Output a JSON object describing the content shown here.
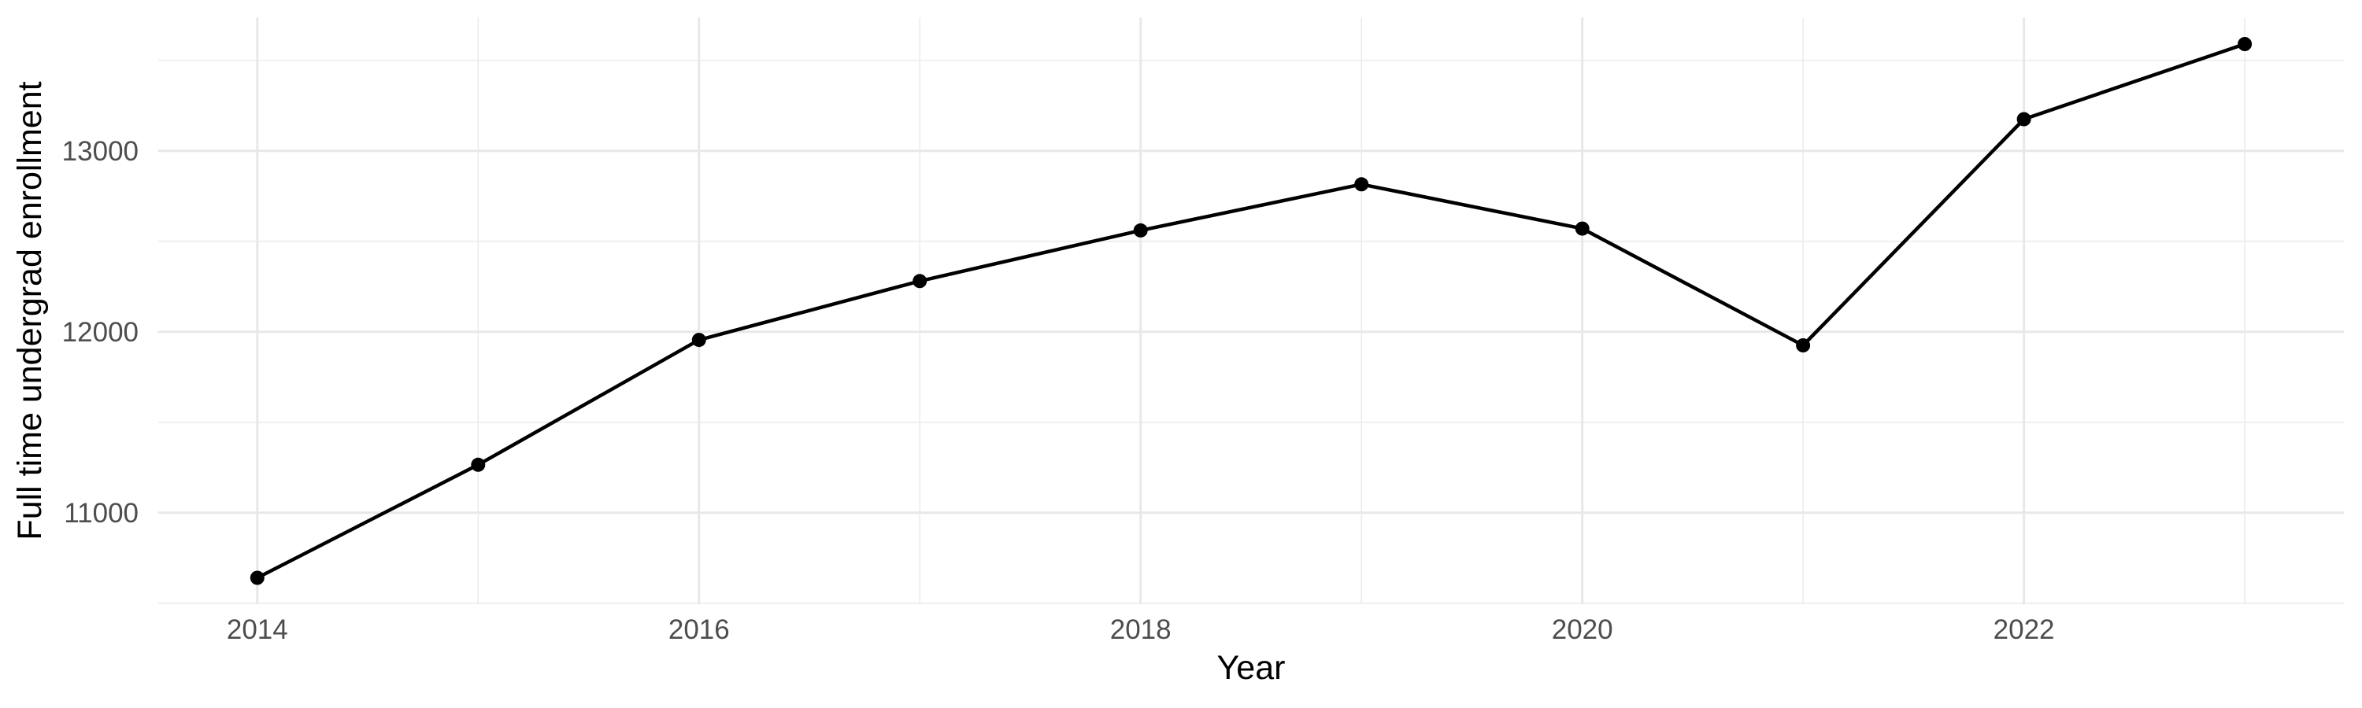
{
  "chart_data": {
    "type": "line",
    "title": "",
    "xlabel": "Year",
    "ylabel": "Full time undergrad enrollment",
    "x": [
      2014,
      2015,
      2016,
      2017,
      2018,
      2019,
      2020,
      2021,
      2022,
      2023
    ],
    "series": [
      {
        "name": "Full time undergrad enrollment",
        "values": [
          10640,
          11265,
          11955,
          12280,
          12560,
          12815,
          12570,
          11925,
          13175,
          13590
        ]
      }
    ],
    "x_ticks_major": [
      2014,
      2016,
      2018,
      2020,
      2022
    ],
    "x_ticks_minor": [
      2015,
      2017,
      2019,
      2021,
      2023
    ],
    "y_ticks_major": [
      11000,
      12000,
      13000
    ],
    "y_ticks_minor": [
      10500,
      11500,
      12500,
      13500
    ],
    "xlim": [
      2013.55,
      2023.45
    ],
    "ylim": [
      10494,
      13737
    ],
    "grid": "on",
    "legend": "none",
    "marker": "filled-circle",
    "colors": {
      "line": "#000000",
      "point": "#000000",
      "grid_major": "#E8E8E8",
      "grid_minor": "#EDEDED",
      "tick_label": "#4D4D4D",
      "axis_title": "#000000",
      "background": "#FFFFFF"
    }
  }
}
